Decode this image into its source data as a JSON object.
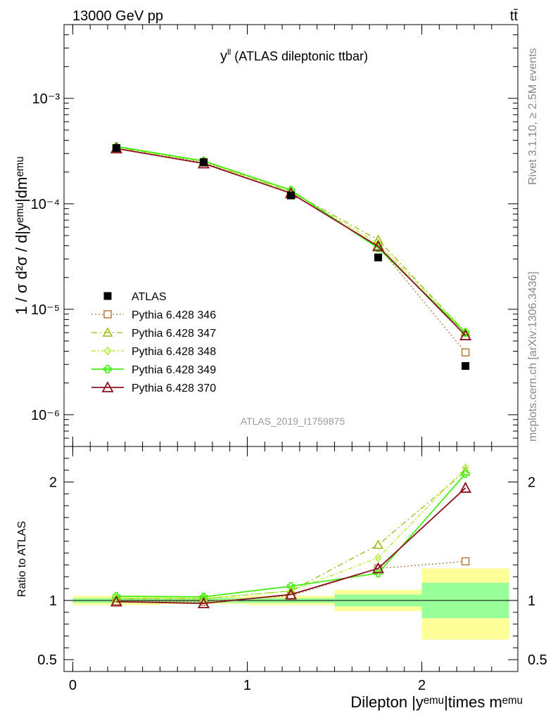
{
  "header": {
    "left": "13000 GeV pp",
    "right": "tt̄"
  },
  "side_labels": {
    "rivet": "Rivet 3.1.10, ≥ 2.5M events",
    "mcplots": "mcplots.cern.ch [arXiv:1306.3436]"
  },
  "chart_data": [
    {
      "type": "scatter",
      "title_main": "y",
      "title_sup": "ll",
      "title_rest": " (ATLAS dileptonic ttbar)",
      "watermark": "ATLAS_2019_I1759875",
      "ylabel": "1 / σ d²σ / d|yᵉᵐᵘ|dmᵉᵐᵘ",
      "yscale": "log",
      "ylim": [
        5e-07,
        0.005
      ],
      "xlim": [
        -0.05,
        2.55
      ],
      "y_ticks": [
        {
          "label": "10⁻³",
          "value": 0.001
        },
        {
          "label": "10⁻⁴",
          "value": 0.0001
        },
        {
          "label": "10⁻⁵",
          "value": 1e-05
        },
        {
          "label": "10⁻⁶",
          "value": 1e-06
        }
      ],
      "x": [
        0.25,
        0.75,
        1.25,
        1.75,
        2.25
      ],
      "data": {
        "name": "ATLAS",
        "values": [
          0.000338,
          0.000248,
          0.00012,
          3.1e-05,
          2.9e-06
        ],
        "band_stat": [
          0.02,
          0.02,
          0.02,
          0.05,
          0.15
        ],
        "band_total": [
          0.04,
          0.03,
          0.04,
          0.09,
          0.3
        ]
      },
      "series": [
        {
          "name": "Pythia 6.428 346",
          "color": "#b07c3a",
          "marker": "square",
          "dash": "2,3",
          "values": [
            0.000336,
            0.000246,
            0.000125,
            3.95e-05,
            3.9e-06
          ]
        },
        {
          "name": "Pythia 6.428 347",
          "color": "#99bb11",
          "marker": "triangle",
          "dash": "8,4,2,4",
          "values": [
            0.000343,
            0.000252,
            0.00013,
            4.55e-05,
            6.05e-06
          ]
        },
        {
          "name": "Pythia 6.428 348",
          "color": "#aaee22",
          "marker": "diamond",
          "dash": "6,3,2,3",
          "values": [
            0.000345,
            0.000252,
            0.00013,
            4.2e-05,
            6.15e-06
          ]
        },
        {
          "name": "Pythia 6.428 349",
          "color": "#44ee11",
          "marker": "cross",
          "dash": "",
          "values": [
            0.00035,
            0.000255,
            0.000135,
            3.8e-05,
            6e-06
          ]
        },
        {
          "name": "Pythia 6.428 370",
          "color": "#8b1020",
          "marker": "triangle-open",
          "dash": "",
          "values": [
            0.000334,
            0.000241,
            0.000126,
            3.95e-05,
            5.65e-06
          ]
        }
      ]
    },
    {
      "type": "scatter",
      "ylabel": "Ratio to ATLAS",
      "xlabel": "Dilepton |yᵉᵐᵘ|times mᵉᵐᵘ",
      "ylim": [
        0.4,
        2.3
      ],
      "xlim": [
        -0.05,
        2.55
      ],
      "y_ticks": [
        {
          "label": "2",
          "value": 2
        },
        {
          "label": "1",
          "value": 1
        },
        {
          "label": "0.5",
          "value": 0.5
        }
      ],
      "x_ticks": [
        {
          "label": "0",
          "value": 0
        },
        {
          "label": "1",
          "value": 1
        },
        {
          "label": "2",
          "value": 2
        }
      ],
      "x_bins": [
        [
          0,
          0.5
        ],
        [
          0.5,
          1.0
        ],
        [
          1.0,
          1.5
        ],
        [
          1.5,
          2.0
        ],
        [
          2.0,
          2.5
        ]
      ],
      "band_total": [
        [
          0.96,
          1.04
        ],
        [
          0.97,
          1.03
        ],
        [
          0.96,
          1.04
        ],
        [
          0.91,
          1.09
        ],
        [
          0.67,
          1.27
        ]
      ],
      "band_stat": [
        [
          0.98,
          1.02
        ],
        [
          0.98,
          1.02
        ],
        [
          0.98,
          1.02
        ],
        [
          0.95,
          1.05
        ],
        [
          0.85,
          1.15
        ]
      ],
      "series": [
        {
          "name": "Pythia 6.428 346",
          "values": [
            0.995,
            0.99,
            1.04,
            1.27,
            1.33
          ]
        },
        {
          "name": "Pythia 6.428 347",
          "values": [
            1.015,
            1.015,
            1.08,
            1.47,
            2.09
          ]
        },
        {
          "name": "Pythia 6.428 348",
          "values": [
            1.02,
            1.015,
            1.08,
            1.36,
            2.12
          ]
        },
        {
          "name": "Pythia 6.428 349",
          "values": [
            1.035,
            1.03,
            1.12,
            1.23,
            2.07
          ]
        },
        {
          "name": "Pythia 6.428 370",
          "values": [
            0.99,
            0.975,
            1.05,
            1.27,
            1.95
          ]
        }
      ]
    }
  ]
}
